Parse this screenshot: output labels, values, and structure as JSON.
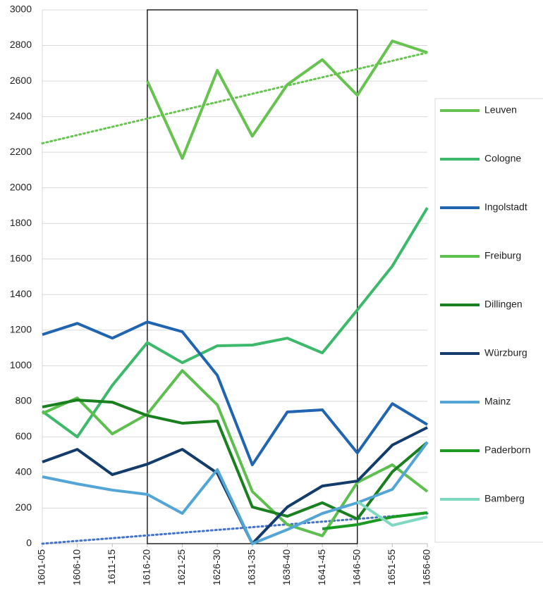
{
  "chart_data": {
    "type": "line",
    "categories": [
      "1601-05",
      "1606-10",
      "1611-15",
      "1616-20",
      "1621-25",
      "1626-30",
      "1631-35",
      "1636-40",
      "1641-45",
      "1646-50",
      "1651-55",
      "1656-60"
    ],
    "series": [
      {
        "name": "Leuven",
        "color": "#66c34f",
        "values": [
          null,
          null,
          null,
          2600,
          2165,
          2660,
          2290,
          2580,
          2720,
          2520,
          2825,
          2760
        ]
      },
      {
        "name": "Cologne",
        "color": "#3cb96b",
        "values": [
          744,
          600,
          890,
          1130,
          1017,
          1112,
          1116,
          1155,
          1072,
          1314,
          1560,
          1888
        ]
      },
      {
        "name": "Ingolstadt",
        "color": "#2165b0",
        "values": [
          1175,
          1238,
          1155,
          1246,
          1191,
          946,
          443,
          740,
          752,
          510,
          787,
          669
        ]
      },
      {
        "name": "Freiburg",
        "color": "#5dbf4e",
        "values": [
          732,
          819,
          617,
          728,
          973,
          780,
          293,
          107,
          44,
          344,
          443,
          293
        ]
      },
      {
        "name": "Dillingen",
        "color": "#1a7f1f",
        "values": [
          768,
          807,
          795,
          720,
          677,
          689,
          206,
          154,
          230,
          139,
          404,
          570
        ]
      },
      {
        "name": "Würzburg",
        "color": "#143c6b",
        "values": [
          459,
          530,
          388,
          447,
          530,
          396,
          0,
          206,
          324,
          352,
          554,
          653
        ]
      },
      {
        "name": "Mainz",
        "color": "#52a5d5",
        "values": [
          376,
          336,
          301,
          277,
          170,
          416,
          0,
          79,
          170,
          230,
          305,
          570
        ]
      },
      {
        "name": "Paderborn",
        "color": "#1a9a23",
        "values": [
          null,
          null,
          null,
          null,
          null,
          null,
          null,
          null,
          83,
          107,
          150,
          174
        ]
      },
      {
        "name": "Bamberg",
        "color": "#7fd8c0",
        "values": [
          null,
          null,
          null,
          null,
          null,
          null,
          null,
          null,
          null,
          237,
          103,
          150
        ]
      }
    ],
    "trendlines": [
      {
        "color": "#66c34f",
        "values": [
          2250,
          2760
        ]
      },
      {
        "color": "#4472c4",
        "values": [
          0,
          170
        ]
      }
    ],
    "highlight": [
      3,
      9
    ],
    "ylim": [
      0,
      3000
    ],
    "yticks": [
      0,
      200,
      400,
      600,
      800,
      1000,
      1200,
      1400,
      1600,
      1800,
      2000,
      2200,
      2400,
      2600,
      2800,
      3000
    ],
    "grid": true,
    "legend": "right"
  }
}
